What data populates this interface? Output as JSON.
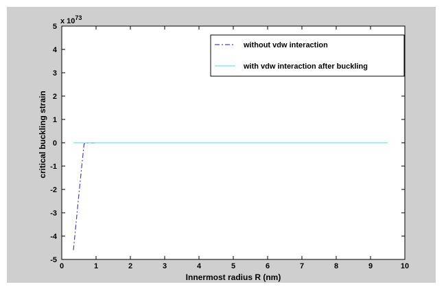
{
  "chart_data": {
    "type": "line",
    "xlabel": "Innermost radius R (nm)",
    "ylabel": "critical buckling strain",
    "y_multiplier": "x 10",
    "y_exponent": "73",
    "xlim": [
      0,
      10
    ],
    "ylim": [
      -5,
      5
    ],
    "x_ticks": [
      "0",
      "1",
      "2",
      "3",
      "4",
      "5",
      "6",
      "7",
      "8",
      "9",
      "10"
    ],
    "y_ticks": [
      "5",
      "4",
      "3",
      "2",
      "1",
      "0",
      "-1",
      "-2",
      "-3",
      "-4",
      "-5"
    ],
    "grid": false,
    "legend_position": "top-right",
    "series": [
      {
        "name": "without vdw interaction",
        "color": "#4b3fc4",
        "line_style": "dash-dot",
        "x": [
          0.34,
          0.5,
          0.65,
          0.72,
          0.8,
          0.9,
          1.0
        ],
        "y": [
          -4.6,
          -2.2,
          -0.05,
          -0.02,
          0.01,
          -0.01,
          0.0
        ]
      },
      {
        "name": "with vdw interaction after buckling",
        "color": "#6fe2e6",
        "line_style": "solid",
        "x": [
          0.34,
          9.5
        ],
        "y": [
          0,
          0
        ]
      }
    ]
  }
}
